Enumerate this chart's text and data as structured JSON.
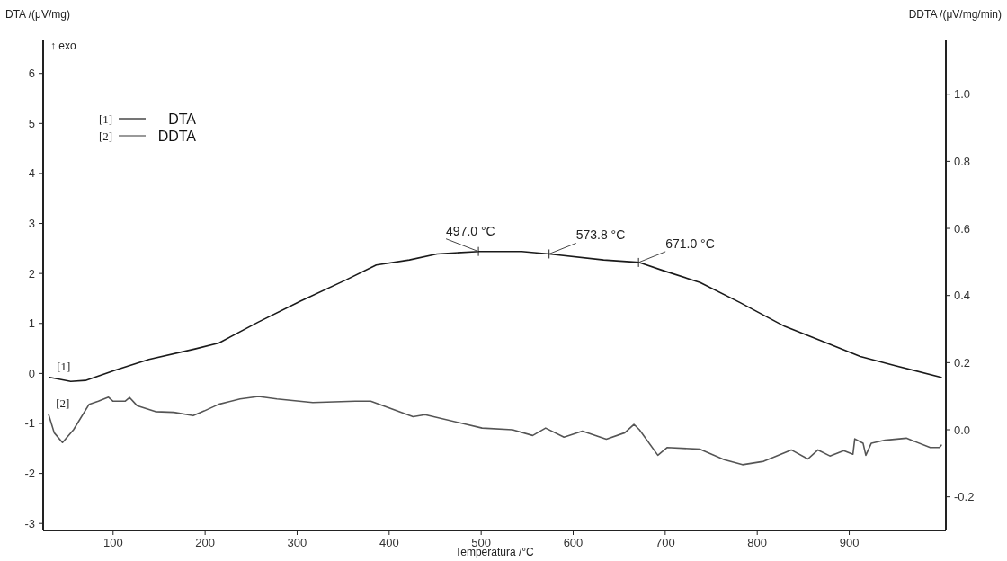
{
  "chart_data": {
    "type": "line",
    "xlabel": "Temperatura /°C",
    "ylabel": "DTA /(μV/mg)",
    "y2label": "DDTA /(μV/mg/min)",
    "xlim": [
      24,
      1005
    ],
    "xticks": [
      100,
      200,
      300,
      400,
      500,
      600,
      700,
      800,
      900
    ],
    "ylim": [
      -3.14,
      6.66
    ],
    "yticks": [
      -3,
      -2,
      -1,
      0,
      1,
      2,
      3,
      4,
      5,
      6
    ],
    "y2lim": [
      -0.3,
      1.16
    ],
    "y2ticks": [
      -0.2,
      {
        "value": 0,
        "label": "0.0"
      },
      0.2,
      0.4,
      0.6,
      0.8,
      {
        "value": 1,
        "label": "1.0"
      }
    ],
    "legend": "top left",
    "grid": false,
    "line_style": "solid",
    "series": [
      {
        "name": "DTA",
        "color": "#1a1a1a",
        "x": [
          31,
          54,
          70,
          103,
          139,
          189,
          215,
          258,
          304,
          353,
          386,
          422,
          452,
          498,
          544,
          574,
          633,
          672,
          699,
          738,
          781,
          830,
          870,
          912,
          949,
          1000
        ],
        "values": [
          -0.08,
          -0.16,
          -0.14,
          0.07,
          0.28,
          0.49,
          0.61,
          1.03,
          1.45,
          1.87,
          2.17,
          2.27,
          2.39,
          2.44,
          2.44,
          2.39,
          2.27,
          2.22,
          2.05,
          1.82,
          1.42,
          0.94,
          0.65,
          0.34,
          0.16,
          -0.08
        ]
      },
      {
        "name": "DDTA",
        "color": "#555555",
        "axis": "y2",
        "x": [
          30,
          36,
          45,
          57,
          74,
          84,
          95,
          100,
          113,
          118,
          126,
          146,
          166,
          187,
          199,
          215,
          238,
          258,
          278,
          317,
          363,
          380,
          426,
          439,
          501,
          534,
          556,
          570,
          590,
          610,
          636,
          656,
          666,
          672,
          692,
          702,
          738,
          764,
          784,
          807,
          837,
          855,
          866,
          879,
          894,
          904,
          906,
          915,
          918,
          924,
          939,
          962,
          988,
          998,
          1000
        ],
        "values": [
          0.045,
          -0.009,
          -0.038,
          0.0,
          0.076,
          0.085,
          0.097,
          0.085,
          0.085,
          0.096,
          0.072,
          0.054,
          0.052,
          0.042,
          0.056,
          0.076,
          0.092,
          0.099,
          0.092,
          0.081,
          0.085,
          0.085,
          0.039,
          0.045,
          0.005,
          0.0,
          -0.017,
          0.005,
          -0.022,
          -0.004,
          -0.028,
          -0.009,
          0.016,
          0.0,
          -0.076,
          -0.053,
          -0.058,
          -0.089,
          -0.104,
          -0.094,
          -0.06,
          -0.087,
          -0.06,
          -0.078,
          -0.062,
          -0.073,
          -0.027,
          -0.04,
          -0.076,
          -0.04,
          -0.031,
          -0.025,
          -0.053,
          -0.053,
          -0.046
        ]
      }
    ],
    "annotations": [
      "↑ exo",
      {
        "text": "[1]",
        "x": 31,
        "y": -0.08
      },
      {
        "text": "[2]",
        "x": 30,
        "y": -0.82
      },
      {
        "text": "497.0 °C",
        "x": 497,
        "y": 2.44
      },
      {
        "text": "573.8 °C",
        "x": 573.8,
        "y": 2.39
      },
      {
        "text": "671.0 °C",
        "x": 671,
        "y": 2.22
      }
    ]
  }
}
